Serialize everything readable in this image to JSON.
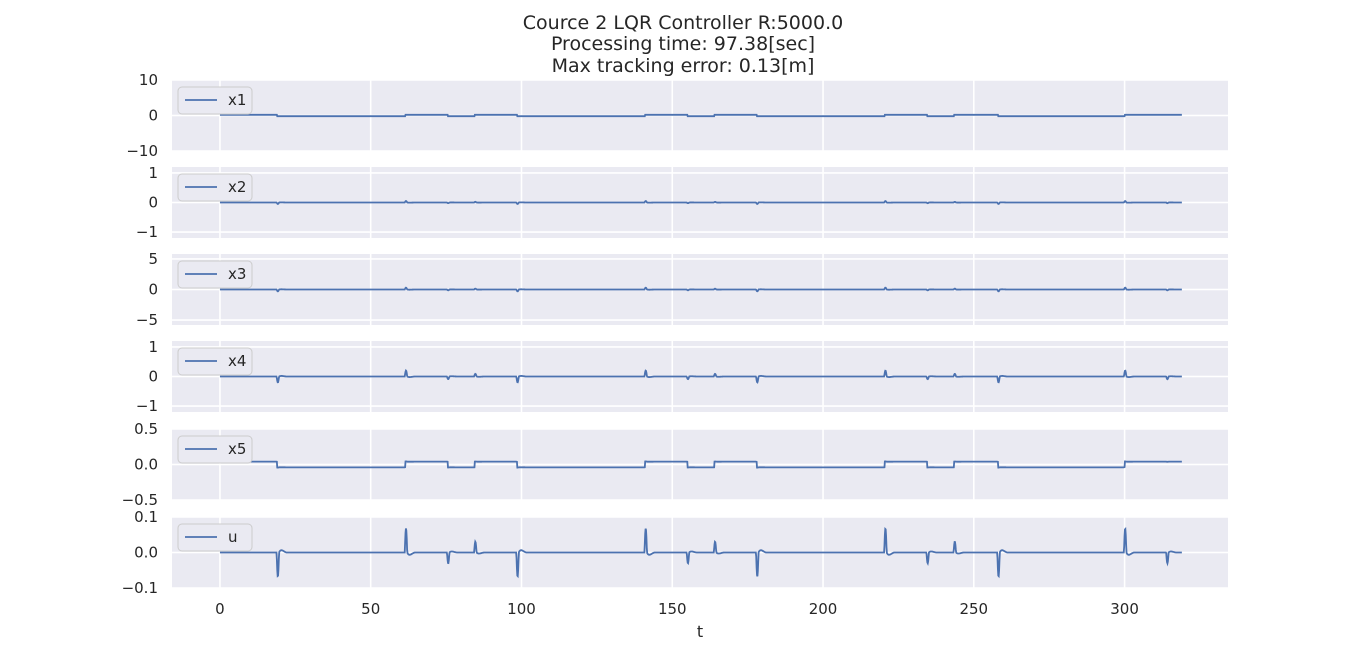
{
  "title": [
    "Cource 2  LQR Controller   R:5000.0",
    "Processing time: 97.38[sec]",
    "Max tracking error: 0.13[m]"
  ],
  "colors": {
    "axes_bg": "#eaeaf2",
    "grid": "#ffffff",
    "line": "#4c72b0",
    "text": "#262626"
  },
  "chart_data": {
    "type": "line",
    "xlabel": "t",
    "xlim": [
      -15.9,
      334.3
    ],
    "xticks": [
      0,
      50,
      100,
      150,
      200,
      250,
      300
    ],
    "xtick_labels": [
      "0",
      "50",
      "100",
      "150",
      "200",
      "250",
      "300"
    ],
    "x_range": [
      0,
      319
    ],
    "events": [
      {
        "t": 19,
        "d": -1,
        "m": 1.0
      },
      {
        "t": 61.5,
        "d": 1,
        "m": 1.0
      },
      {
        "t": 75.5,
        "d": -1,
        "m": 0.45
      },
      {
        "t": 84.5,
        "d": 1,
        "m": 0.45
      },
      {
        "t": 98.5,
        "d": -1,
        "m": 1.0
      },
      {
        "t": 141,
        "d": 1,
        "m": 1.0
      },
      {
        "t": 155,
        "d": -1,
        "m": 0.45
      },
      {
        "t": 164,
        "d": 1,
        "m": 0.45
      },
      {
        "t": 178,
        "d": -1,
        "m": 1.0
      },
      {
        "t": 220.5,
        "d": 1,
        "m": 1.0
      },
      {
        "t": 234.5,
        "d": -1,
        "m": 0.45
      },
      {
        "t": 243.5,
        "d": 1,
        "m": 0.45
      },
      {
        "t": 258,
        "d": -1,
        "m": 1.0
      },
      {
        "t": 300,
        "d": 1,
        "m": 1.0
      },
      {
        "t": 314,
        "d": -1,
        "m": 0.45
      }
    ],
    "panels": [
      {
        "name": "x1",
        "ylim": [
          -10,
          10
        ],
        "yticks": [
          -10,
          0,
          10
        ],
        "ytick_labels": [
          "−10",
          "0",
          "10"
        ],
        "kind": "level",
        "amp": 0.2,
        "spike": 0.0,
        "base": 0.0
      },
      {
        "name": "x2",
        "ylim": [
          -1.2,
          1.2
        ],
        "yticks": [
          -1,
          0,
          1
        ],
        "ytick_labels": [
          "−1",
          "0",
          "1"
        ],
        "kind": "spike",
        "amp": 0.0,
        "spike": 0.05,
        "base": 0.0
      },
      {
        "name": "x3",
        "ylim": [
          -5.8,
          5.8
        ],
        "yticks": [
          -5,
          0,
          5
        ],
        "ytick_labels": [
          "−5",
          "0",
          "5"
        ],
        "kind": "spike",
        "amp": 0.0,
        "spike": 0.3,
        "base": 0.0
      },
      {
        "name": "x4",
        "ylim": [
          -1.2,
          1.2
        ],
        "yticks": [
          -1,
          0,
          1
        ],
        "ytick_labels": [
          "−1",
          "0",
          "1"
        ],
        "kind": "spike",
        "amp": 0.0,
        "spike": 0.2,
        "base": 0.0
      },
      {
        "name": "x5",
        "ylim": [
          -0.5,
          0.5
        ],
        "yticks": [
          -0.5,
          0.0,
          0.5
        ],
        "ytick_labels": [
          "−0.5",
          "0.0",
          "0.5"
        ],
        "kind": "level",
        "amp": 0.04,
        "spike": 0.0,
        "base": 0.0
      },
      {
        "name": "u",
        "ylim": [
          -0.1,
          0.1
        ],
        "yticks": [
          -0.1,
          0.0,
          0.1
        ],
        "ytick_labels": [
          "−0.1",
          "0.0",
          "0.1"
        ],
        "kind": "spike",
        "amp": 0.0,
        "spike": 0.068,
        "base": 0.0
      }
    ]
  }
}
